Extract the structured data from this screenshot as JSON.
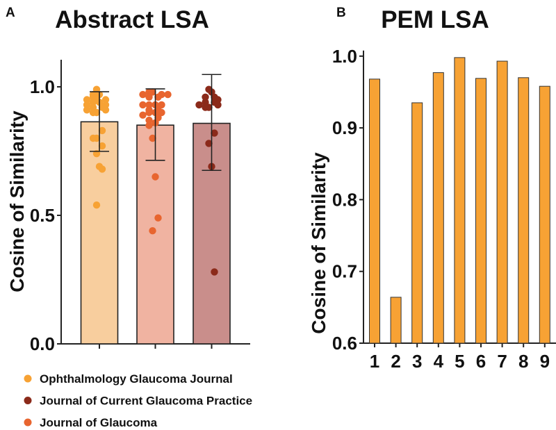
{
  "chart_data": [
    {
      "type": "bar",
      "panel_label": "A",
      "title": "Abstract LSA",
      "xlabel": "",
      "ylabel": "Cosine of Similarity",
      "ylim": [
        0,
        1.1
      ],
      "yticks": [
        "0.0",
        "0.5",
        "1.0"
      ],
      "ytick_values": [
        0,
        0.5,
        1.0
      ],
      "legend_position": "bottom-left",
      "series": [
        {
          "name": "Ophthalmology Glaucoma Journal",
          "mean": 0.864,
          "sd_upper": 0.981,
          "sd_lower": 0.749,
          "bar_color": "#F8CE9E",
          "point_color": "#F7A234",
          "points": [
            0.99,
            0.97,
            0.97,
            0.96,
            0.96,
            0.95,
            0.95,
            0.94,
            0.94,
            0.93,
            0.93,
            0.92,
            0.92,
            0.91,
            0.91,
            0.9,
            0.9,
            0.83,
            0.8,
            0.8,
            0.77,
            0.74,
            0.69,
            0.68,
            0.54
          ]
        },
        {
          "name": "Journal of Glaucoma",
          "mean": 0.851,
          "sd_upper": 0.992,
          "sd_lower": 0.714,
          "bar_color": "#F0B3A1",
          "point_color": "#E8652F",
          "points": [
            0.98,
            0.98,
            0.97,
            0.97,
            0.97,
            0.96,
            0.96,
            0.93,
            0.93,
            0.93,
            0.93,
            0.92,
            0.91,
            0.9,
            0.9,
            0.9,
            0.89,
            0.88,
            0.87,
            0.86,
            0.85,
            0.8,
            0.65,
            0.49,
            0.44
          ]
        },
        {
          "name": "Journal of Current Glaucoma Practice",
          "mean": 0.858,
          "sd_upper": 1.048,
          "sd_lower": 0.675,
          "bar_color": "#C98E8B",
          "point_color": "#8B2A1A",
          "points": [
            0.99,
            0.98,
            0.96,
            0.96,
            0.95,
            0.94,
            0.94,
            0.93,
            0.93,
            0.92,
            0.92,
            0.82,
            0.78,
            0.69,
            0.28
          ]
        }
      ],
      "legend": [
        {
          "label": "Ophthalmology Glaucoma Journal",
          "color": "#F7A234"
        },
        {
          "label": "Journal of Current Glaucoma Practice",
          "color": "#8B2A1A"
        },
        {
          "label": "Journal of Glaucoma",
          "color": "#E8652F"
        }
      ]
    },
    {
      "type": "bar",
      "panel_label": "B",
      "title": "PEM LSA",
      "xlabel": "",
      "ylabel": "Cosine of Similarity",
      "ylim": [
        0.6,
        1.0
      ],
      "yticks": [
        "0.6",
        "0.7",
        "0.8",
        "0.9",
        "1.0"
      ],
      "ytick_values": [
        0.6,
        0.7,
        0.8,
        0.9,
        1.0
      ],
      "categories": [
        "1",
        "2",
        "3",
        "4",
        "5",
        "6",
        "7",
        "8",
        "9"
      ],
      "values": [
        0.968,
        0.664,
        0.935,
        0.977,
        0.998,
        0.969,
        0.993,
        0.97,
        0.958
      ],
      "bar_color": "#F7A234"
    }
  ]
}
